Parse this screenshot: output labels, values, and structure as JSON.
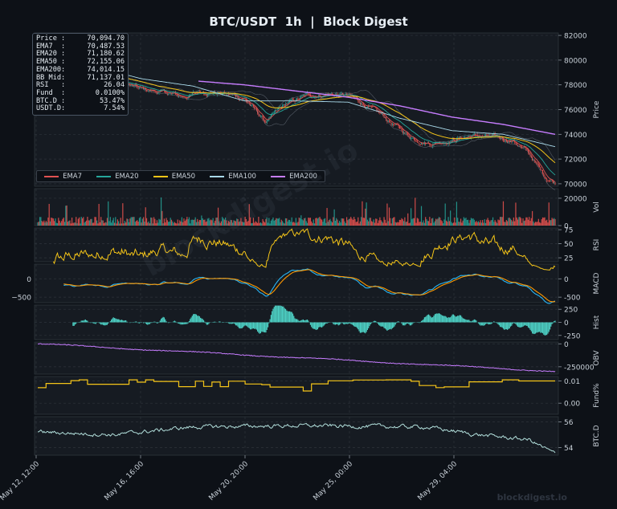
{
  "title": "BTC/USDT  1h  |  Block Digest",
  "watermark": "blockdigest.io",
  "watermark_center": "blockdigest.io",
  "stats": [
    {
      "label": "Price :",
      "value": "70,094.70"
    },
    {
      "label": "EMA7  :",
      "value": "70,487.53"
    },
    {
      "label": "EMA20 :",
      "value": "71,180.62"
    },
    {
      "label": "EMA50 :",
      "value": "72,155.06"
    },
    {
      "label": "EMA200:",
      "value": "74,014.15"
    },
    {
      "label": "BB Mid:",
      "value": "71,137.01"
    },
    {
      "label": "RSI   :",
      "value": "26.04"
    },
    {
      "label": "Fund  :",
      "value": "0.0100%"
    },
    {
      "label": "BTC.D :",
      "value": "53.47%"
    },
    {
      "label": "USDT.D:",
      "value": "7.54%"
    }
  ],
  "colors": {
    "ema7": "#e05252",
    "ema20": "#26a69a",
    "ema50": "#f5c518",
    "ema100": "#a8d8e8",
    "ema200": "#c77dff",
    "up": "#26a69a",
    "down": "#ef5350",
    "rsi": "#f5c518",
    "macd": "#29b6f6",
    "signal": "#ff9800",
    "hist": "#4dd0c4",
    "obv": "#c77dff",
    "fund": "#f5c518",
    "btcd": "#b2dfdb"
  },
  "chart_data": {
    "type": "line",
    "x_ticks": [
      "May 12, 12:00",
      "May 16, 16:00",
      "May 20, 20:00",
      "May 25, 00:00",
      "May 29, 04:00"
    ],
    "legend": [
      "EMA7",
      "EMA20",
      "EMA50",
      "EMA100",
      "EMA200"
    ],
    "panels": [
      {
        "name": "price",
        "ylabel": "Price",
        "ylim": [
          69800,
          82200
        ],
        "ticks": [
          "82000",
          "80000",
          "78000",
          "76000",
          "74000",
          "72000",
          "70000"
        ],
        "tick_values": [
          82000,
          80000,
          78000,
          76000,
          74000,
          72000,
          70000
        ],
        "price_path": [
          [
            0,
            80100
          ],
          [
            0.04,
            79500
          ],
          [
            0.08,
            79000
          ],
          [
            0.12,
            78600
          ],
          [
            0.16,
            78200
          ],
          [
            0.2,
            77600
          ],
          [
            0.24,
            77400
          ],
          [
            0.28,
            77000
          ],
          [
            0.32,
            77500
          ],
          [
            0.36,
            77300
          ],
          [
            0.4,
            76900
          ],
          [
            0.44,
            75000
          ],
          [
            0.48,
            76400
          ],
          [
            0.52,
            77100
          ],
          [
            0.56,
            77300
          ],
          [
            0.6,
            77100
          ],
          [
            0.64,
            76200
          ],
          [
            0.68,
            75000
          ],
          [
            0.72,
            73800
          ],
          [
            0.76,
            73300
          ],
          [
            0.8,
            73600
          ],
          [
            0.84,
            73900
          ],
          [
            0.88,
            73700
          ],
          [
            0.92,
            73500
          ],
          [
            0.95,
            72400
          ],
          [
            0.98,
            70600
          ],
          [
            1.0,
            70100
          ]
        ],
        "ema200_path": [
          [
            0.31,
            78300
          ],
          [
            0.4,
            78000
          ],
          [
            0.5,
            77500
          ],
          [
            0.6,
            77000
          ],
          [
            0.7,
            76300
          ],
          [
            0.8,
            75400
          ],
          [
            0.9,
            74800
          ],
          [
            1.0,
            74000
          ]
        ],
        "ema100_path": [
          [
            0.08,
            79800
          ],
          [
            0.2,
            78500
          ],
          [
            0.3,
            77900
          ],
          [
            0.4,
            76700
          ],
          [
            0.5,
            76700
          ],
          [
            0.6,
            76600
          ],
          [
            0.7,
            75300
          ],
          [
            0.8,
            74300
          ],
          [
            0.9,
            74000
          ],
          [
            1.0,
            73000
          ]
        ]
      },
      {
        "name": "volume",
        "ylabel": "Vol",
        "ylim": [
          0,
          27000
        ],
        "ticks": [
          "20000",
          "0"
        ],
        "tick_values": [
          20000,
          0
        ]
      },
      {
        "name": "rsi",
        "ylabel": "RSI",
        "ylim": [
          18,
          78
        ],
        "ticks": [
          "75",
          "50",
          "25"
        ],
        "tick_values": [
          75,
          50,
          25
        ]
      },
      {
        "name": "macd",
        "ylabel": "MACD",
        "ylim": [
          -650,
          400
        ],
        "ticks": [
          "0",
          "-500"
        ],
        "tick_values": [
          0,
          -500
        ],
        "left_ticks": [
          "0",
          "−500"
        ]
      },
      {
        "name": "hist",
        "ylabel": "Hist",
        "ylim": [
          -330,
          330
        ],
        "ticks": [
          "250",
          "0",
          "-250"
        ],
        "tick_values": [
          250,
          0,
          -250
        ]
      },
      {
        "name": "obv",
        "ylabel": "OBV",
        "ylim": [
          -330000,
          20000
        ],
        "ticks": [
          "0",
          "-250000"
        ],
        "tick_values": [
          0,
          -250000
        ]
      },
      {
        "name": "funding",
        "ylabel": "Fund%",
        "ylim": [
          -0.005,
          0.012
        ],
        "ticks": [
          "0.01",
          "0.00"
        ],
        "tick_values": [
          0.01,
          0.0
        ]
      },
      {
        "name": "btcd",
        "ylabel": "BTC.D",
        "ylim": [
          53.4,
          56.4
        ],
        "ticks": [
          "56",
          "54"
        ],
        "tick_values": [
          56,
          54
        ]
      }
    ]
  }
}
